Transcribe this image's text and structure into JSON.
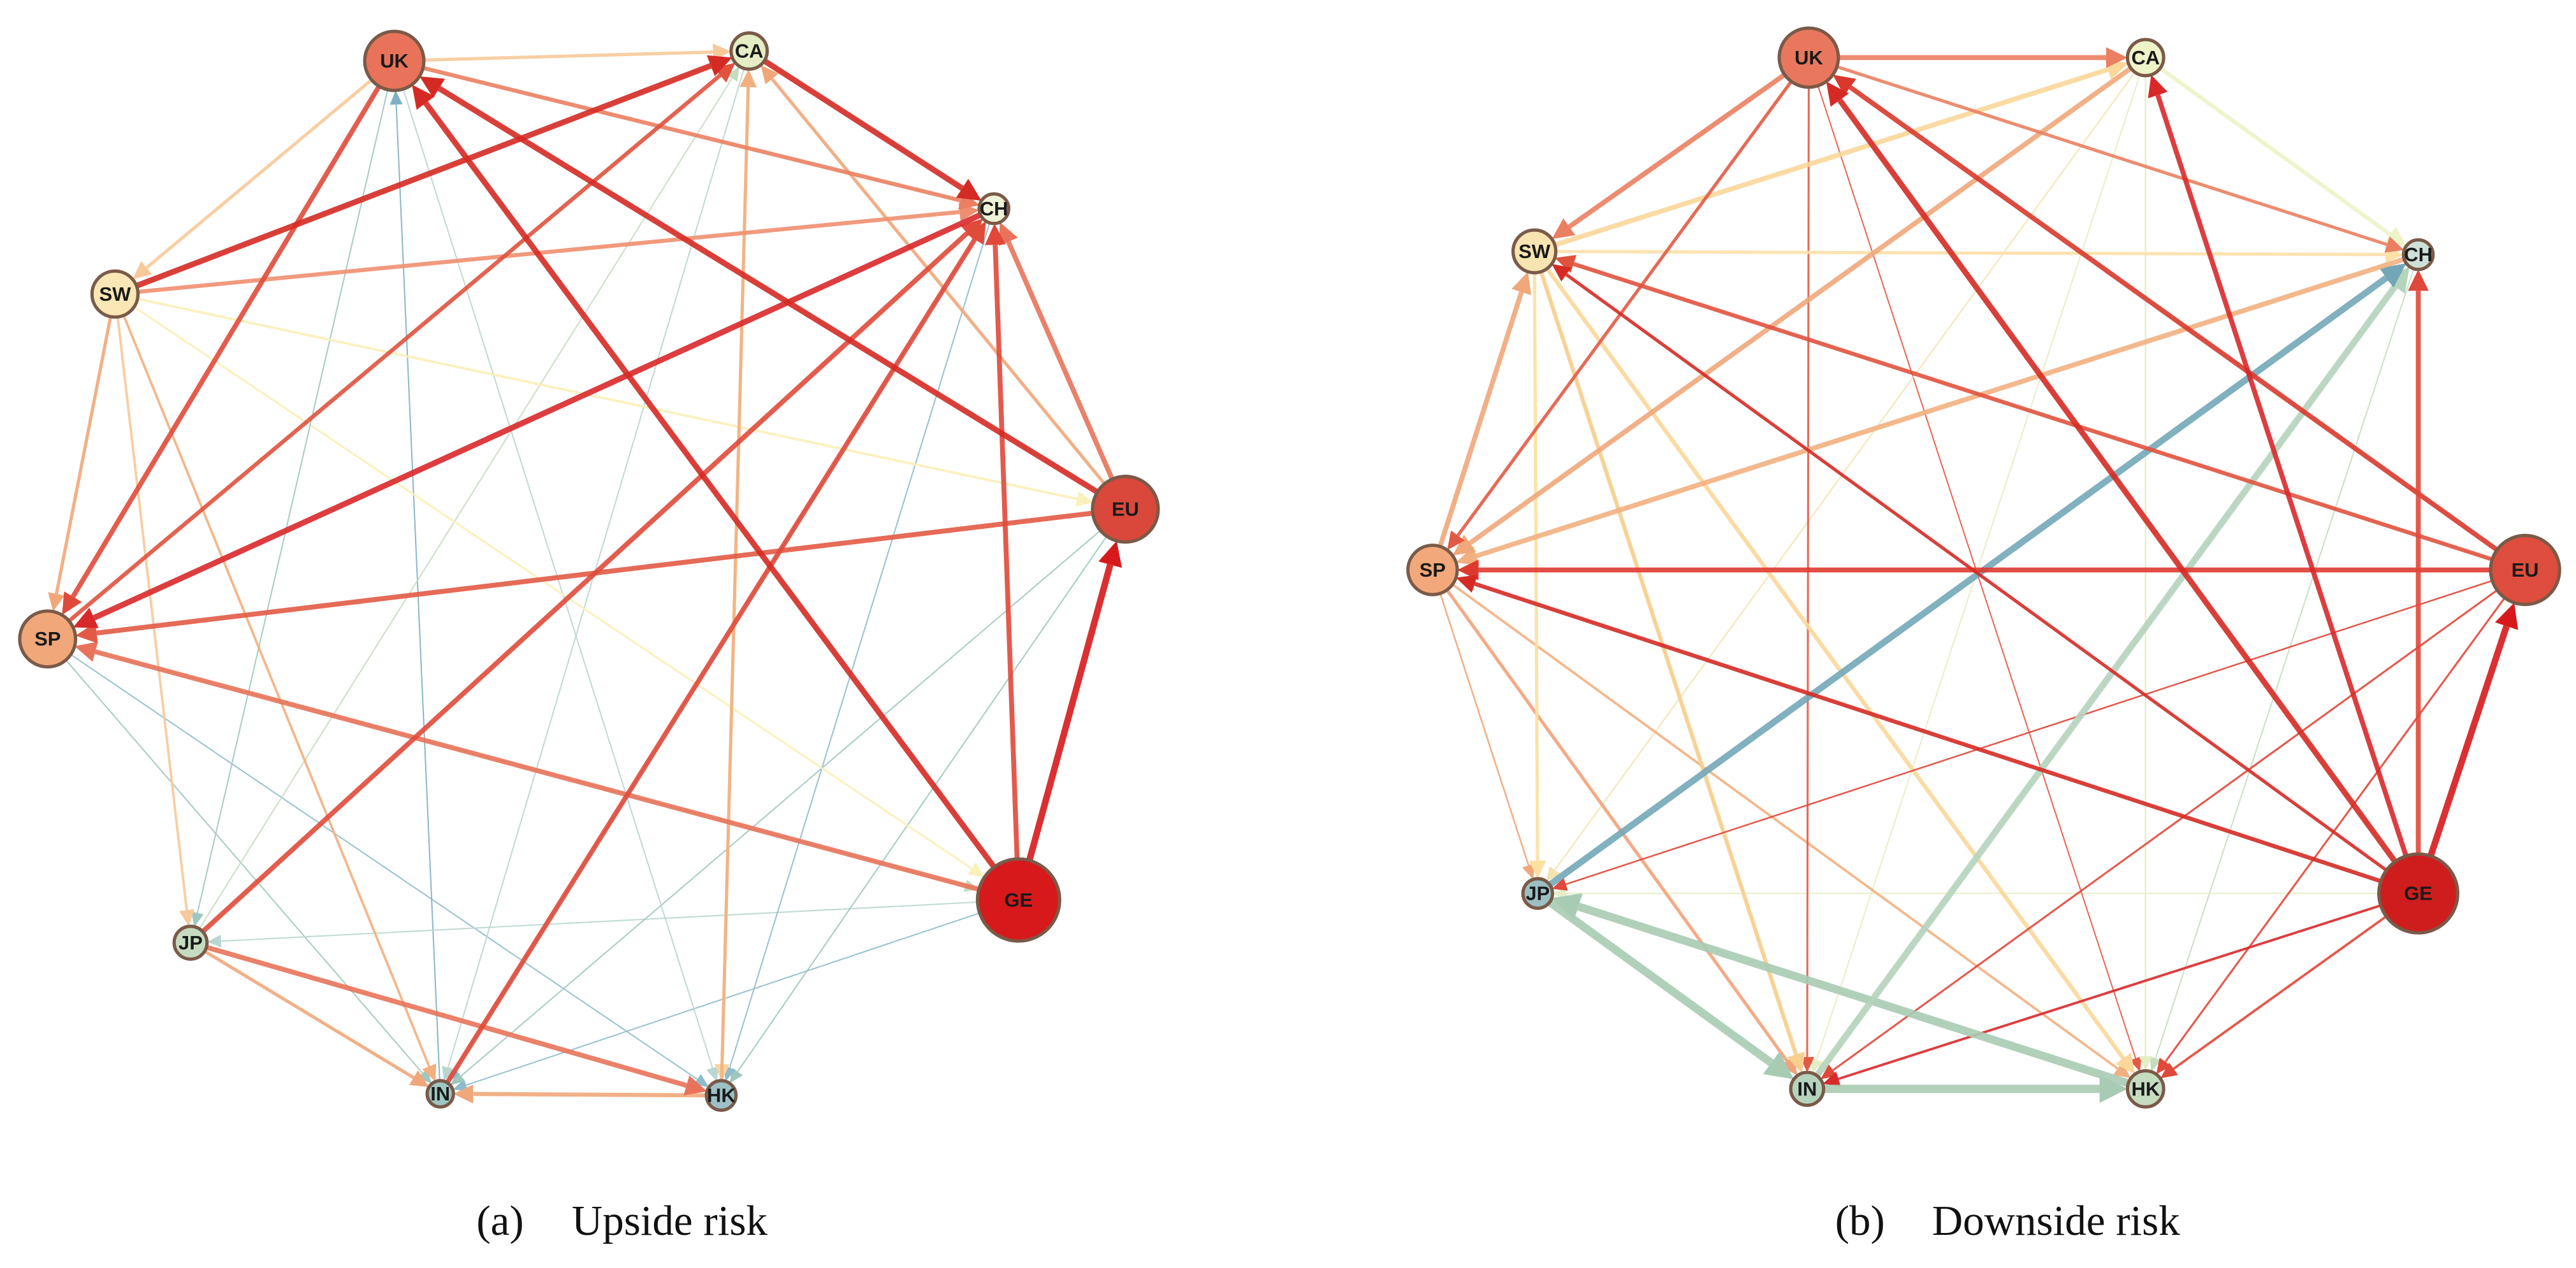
{
  "panels": [
    {
      "nodes": [
        {
          "label": "UK"
        },
        {
          "label": "CA"
        },
        {
          "label": "CH"
        },
        {
          "label": "SW"
        },
        {
          "label": "EU"
        },
        {
          "label": "SP"
        },
        {
          "label": "GE"
        },
        {
          "label": "JP"
        },
        {
          "label": "IN"
        },
        {
          "label": "HK"
        }
      ],
      "caption": {
        "label": "(a)",
        "text": "Upside risk"
      }
    },
    {
      "nodes": [
        {
          "label": "UK"
        },
        {
          "label": "CA"
        },
        {
          "label": "CH"
        },
        {
          "label": "SW"
        },
        {
          "label": "EU"
        },
        {
          "label": "SP"
        },
        {
          "label": "GE"
        },
        {
          "label": "JP"
        },
        {
          "label": "IN"
        },
        {
          "label": "HK"
        }
      ],
      "caption": {
        "label": "(b)",
        "text": "Downside risk"
      }
    }
  ]
}
